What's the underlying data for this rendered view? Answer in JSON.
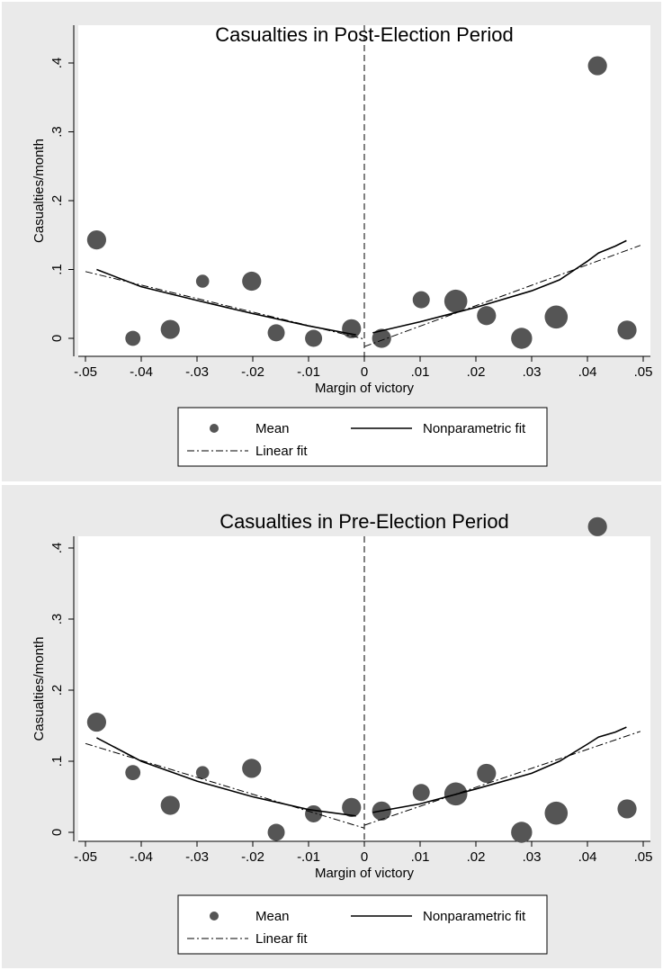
{
  "chart_data": [
    {
      "type": "scatter",
      "title": "Casualties in Post-Election Period",
      "xlabel": "Margin of victory",
      "ylabel": "Casualties/month",
      "xlim": [
        -0.05,
        0.05
      ],
      "ylim": [
        0,
        0.4
      ],
      "x_ticks": [
        -0.05,
        -0.04,
        -0.03,
        -0.02,
        -0.01,
        0,
        0.01,
        0.02,
        0.03,
        0.04,
        0.05
      ],
      "x_tick_labels": [
        "-.05",
        "-.04",
        "-.03",
        "-.02",
        "-.01",
        "0",
        ".01",
        ".02",
        ".03",
        ".04",
        ".05"
      ],
      "y_ticks": [
        0,
        0.1,
        0.2,
        0.3,
        0.4
      ],
      "y_tick_labels": [
        "0",
        ".1",
        ".2",
        ".3",
        ".4"
      ],
      "cutoff": 0,
      "legend": [
        {
          "label": "Mean",
          "style": "dot"
        },
        {
          "label": "Nonparametric fit",
          "style": "solid"
        },
        {
          "label": "Linear fit",
          "style": "dash-dot"
        }
      ],
      "legend_position": "bottom",
      "series": [
        {
          "name": "Mean",
          "kind": "points",
          "x": [
            -0.048,
            -0.0415,
            -0.0348,
            -0.029,
            -0.0202,
            -0.0158,
            -0.0091,
            -0.0023,
            0.0031,
            0.0102,
            0.0164,
            0.0219,
            0.0282,
            0.0344,
            0.0418,
            0.0471
          ],
          "y": [
            0.143,
            0.0,
            0.013,
            0.083,
            0.083,
            0.008,
            0.0,
            0.014,
            0.0,
            0.056,
            0.054,
            0.033,
            0.0,
            0.031,
            0.396,
            0.012
          ],
          "size": [
            3,
            2,
            3,
            1.5,
            3,
            2.5,
            2.5,
            3,
            3,
            2.5,
            4,
            3,
            3.5,
            4,
            3,
            3
          ]
        },
        {
          "name": "Nonparametric fit",
          "kind": "line",
          "segments": [
            {
              "x": [
                -0.048,
                -0.04,
                -0.03,
                -0.02,
                -0.01,
                -0.0015
              ],
              "y": [
                0.1,
                0.075,
                0.055,
                0.036,
                0.018,
                0.005
              ]
            },
            {
              "x": [
                0.0015,
                0.01,
                0.02,
                0.03,
                0.035,
                0.04,
                0.042,
                0.045,
                0.047
              ],
              "y": [
                0.008,
                0.024,
                0.045,
                0.069,
                0.085,
                0.112,
                0.124,
                0.134,
                0.142
              ]
            }
          ]
        },
        {
          "name": "Linear fit",
          "kind": "line",
          "segments": [
            {
              "x": [
                -0.05,
                0
              ],
              "y": [
                0.097,
                -0.001
              ]
            },
            {
              "x": [
                0,
                0.0495
              ],
              "y": [
                -0.012,
                0.135
              ]
            }
          ]
        }
      ]
    },
    {
      "type": "scatter",
      "title": "Casualties in Pre-Election Period",
      "xlabel": "Margin of victory",
      "ylabel": "Casualties/month",
      "xlim": [
        -0.05,
        0.05
      ],
      "ylim": [
        0,
        0.4
      ],
      "x_ticks": [
        -0.05,
        -0.04,
        -0.03,
        -0.02,
        -0.01,
        0,
        0.01,
        0.02,
        0.03,
        0.04,
        0.05
      ],
      "x_tick_labels": [
        "-.05",
        "-.04",
        "-.03",
        "-.02",
        "-.01",
        "0",
        ".01",
        ".02",
        ".03",
        ".04",
        ".05"
      ],
      "y_ticks": [
        0,
        0.1,
        0.2,
        0.3,
        0.4
      ],
      "y_tick_labels": [
        "0",
        ".1",
        ".2",
        ".3",
        ".4"
      ],
      "cutoff": 0,
      "legend": [
        {
          "label": "Mean",
          "style": "dot"
        },
        {
          "label": "Nonparametric fit",
          "style": "solid"
        },
        {
          "label": "Linear fit",
          "style": "dash-dot"
        }
      ],
      "legend_position": "bottom",
      "series": [
        {
          "name": "Mean",
          "kind": "points",
          "x": [
            -0.048,
            -0.0415,
            -0.0348,
            -0.029,
            -0.0202,
            -0.0158,
            -0.0091,
            -0.0023,
            0.0031,
            0.0102,
            0.0164,
            0.0219,
            0.0282,
            0.0344,
            0.0418,
            0.0471
          ],
          "y": [
            0.155,
            0.084,
            0.038,
            0.084,
            0.09,
            0.0,
            0.026,
            0.035,
            0.03,
            0.056,
            0.054,
            0.083,
            0.0,
            0.027,
            0.43,
            0.033
          ],
          "size": [
            3,
            2,
            3,
            1.5,
            3,
            2.5,
            2.5,
            3,
            3,
            2.5,
            4,
            3,
            3.5,
            4,
            3,
            3
          ]
        },
        {
          "name": "Nonparametric fit",
          "kind": "line",
          "segments": [
            {
              "x": [
                -0.048,
                -0.04,
                -0.03,
                -0.02,
                -0.01,
                -0.0015
              ],
              "y": [
                0.133,
                0.1,
                0.072,
                0.05,
                0.032,
                0.023
              ]
            },
            {
              "x": [
                0.0015,
                0.01,
                0.02,
                0.03,
                0.035,
                0.04,
                0.042,
                0.045,
                0.047
              ],
              "y": [
                0.028,
                0.04,
                0.061,
                0.083,
                0.1,
                0.124,
                0.134,
                0.141,
                0.148
              ]
            }
          ]
        },
        {
          "name": "Linear fit",
          "kind": "line",
          "segments": [
            {
              "x": [
                -0.05,
                0
              ],
              "y": [
                0.125,
                0.006
              ]
            },
            {
              "x": [
                0,
                0.0495
              ],
              "y": [
                0.01,
                0.142
              ]
            }
          ]
        }
      ]
    }
  ]
}
